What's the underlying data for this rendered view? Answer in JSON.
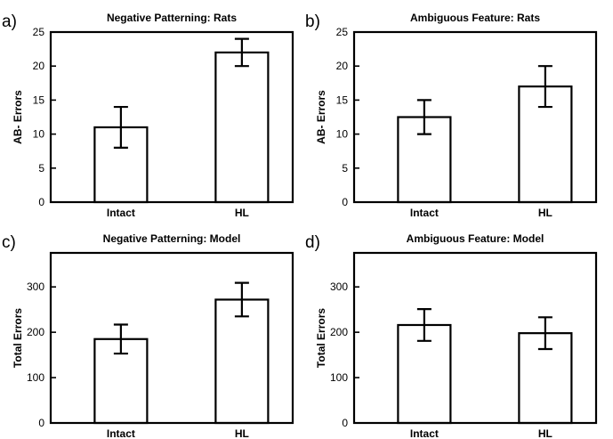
{
  "chart_data": [
    {
      "type": "bar",
      "panel": "a)",
      "title": "Negative Patterning: Rats",
      "ylabel": "AB- Errors",
      "categories": [
        "Intact",
        "HL"
      ],
      "values": [
        11,
        22
      ],
      "errors": [
        3,
        2
      ],
      "ylim": [
        0,
        25
      ],
      "yticks": [
        0,
        5,
        10,
        15,
        20,
        25
      ]
    },
    {
      "type": "bar",
      "panel": "b)",
      "title": "Ambiguous Feature: Rats",
      "ylabel": "AB- Errors",
      "categories": [
        "Intact",
        "HL"
      ],
      "values": [
        12.5,
        17
      ],
      "errors": [
        2.5,
        3
      ],
      "ylim": [
        0,
        25
      ],
      "yticks": [
        0,
        5,
        10,
        15,
        20,
        25
      ]
    },
    {
      "type": "bar",
      "panel": "c)",
      "title": "Negative Patterning: Model",
      "ylabel": "Total Errors",
      "categories": [
        "Intact",
        "HL"
      ],
      "values": [
        185,
        272
      ],
      "errors": [
        32,
        37
      ],
      "ylim": [
        0,
        375
      ],
      "yticks": [
        0,
        100,
        200,
        300
      ]
    },
    {
      "type": "bar",
      "panel": "d)",
      "title": "Ambiguous Feature: Model",
      "ylabel": "Total Errors",
      "categories": [
        "Intact",
        "HL"
      ],
      "values": [
        216,
        198
      ],
      "errors": [
        35,
        35
      ],
      "ylim": [
        0,
        375
      ],
      "yticks": [
        0,
        100,
        200,
        300
      ]
    }
  ]
}
